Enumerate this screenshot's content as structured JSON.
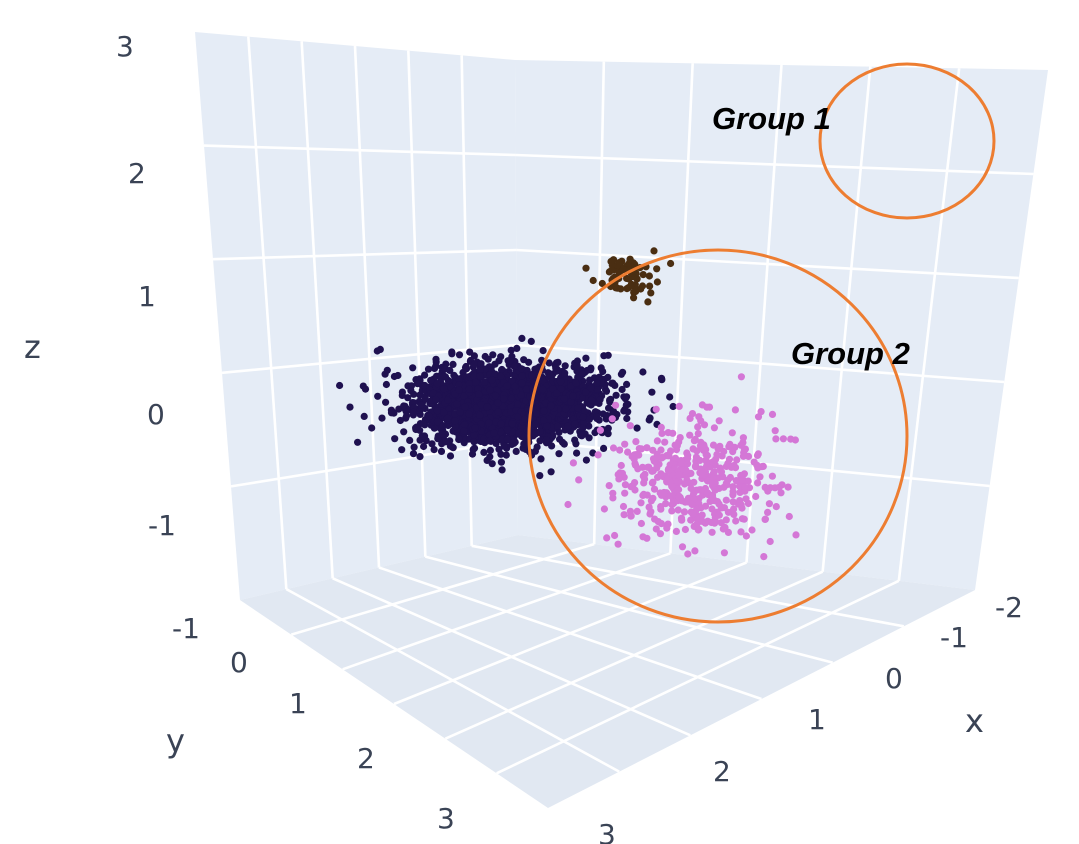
{
  "chart_data": {
    "type": "scatter",
    "dimensions": 3,
    "xlabel": "x",
    "ylabel": "y",
    "zlabel": "z",
    "x_ticks": [
      "-2",
      "-1",
      "0",
      "1",
      "2",
      "3"
    ],
    "y_ticks": [
      "-1",
      "0",
      "1",
      "2",
      "3"
    ],
    "z_ticks": [
      "-1",
      "0",
      "1",
      "2",
      "3"
    ],
    "x_range": [
      -2.3,
      3.3
    ],
    "y_range": [
      -1.3,
      3.3
    ],
    "z_range": [
      -1.5,
      3.2
    ],
    "background": "#e5ecf6",
    "grid": true,
    "legend": "none",
    "series": [
      {
        "color": "#1f1150",
        "description": "dense dark cluster",
        "center": {
          "x": 1.6,
          "y": 0.8,
          "z": 0.3
        },
        "spread": {
          "x": 0.9,
          "y": 1.0,
          "z": 0.35
        },
        "approx_points": 2200
      },
      {
        "color": "#d477d6",
        "description": "pink cluster (branches)",
        "center": {
          "x": -0.4,
          "y": 1.2,
          "z": -0.3
        },
        "spread": {
          "x": 0.9,
          "y": 0.8,
          "z": 0.6
        },
        "approx_points": 450
      },
      {
        "color": "#4a2e12",
        "description": "small brown cluster",
        "center": {
          "x": -1.6,
          "y": -1.5,
          "z": 2.2
        },
        "spread": {
          "x": 0.3,
          "y": 0.3,
          "z": 0.2
        },
        "approx_points": 70
      }
    ],
    "annotations": [
      {
        "label": "Group 1",
        "highlight_color": "#ed7d31",
        "encloses": "brown cluster"
      },
      {
        "label": "Group 2",
        "highlight_color": "#ed7d31",
        "encloses": "pink cluster"
      }
    ]
  }
}
